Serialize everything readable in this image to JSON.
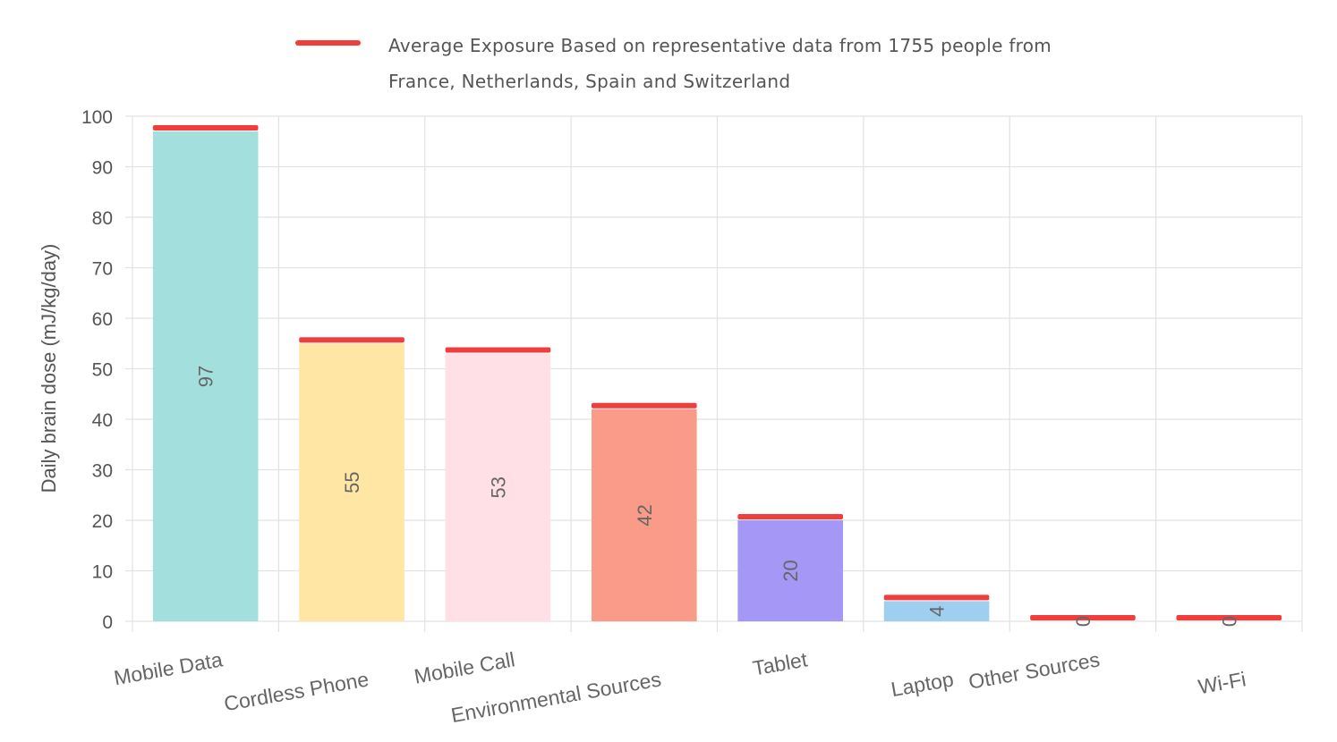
{
  "chart_data": {
    "type": "bar",
    "categories": [
      "Mobile Data",
      "Cordless Phone",
      "Mobile Call",
      "Environmental Sources",
      "Tablet",
      "Laptop",
      "Other Sources",
      "Wi-Fi"
    ],
    "values": [
      97,
      55,
      53,
      42,
      20,
      4,
      0,
      0
    ],
    "bar_colors": [
      "#a3dfdd",
      "#ffe6a4",
      "#ffe0e6",
      "#fa9a88",
      "#a597f5",
      "#9fcfef",
      "#a3dfdd",
      "#a3dfdd"
    ],
    "series": [
      {
        "name": "Average Exposure Based on representative data from 1755 people from France, Netherlands, Spain and Switzerland",
        "values": [
          97,
          55,
          53,
          42,
          20,
          4,
          0,
          0
        ],
        "color": "#f23d3d"
      }
    ],
    "legend_lines": [
      "Average Exposure Based on representative data from 1755 people from",
      "France, Netherlands, Spain and Switzerland"
    ],
    "legend_position": "top",
    "title": "",
    "xlabel": "",
    "ylabel": "Daily brain dose (mJ/kg/day)",
    "ylim": [
      0,
      100
    ],
    "yticks": [
      0,
      10,
      20,
      30,
      40,
      50,
      60,
      70,
      80,
      90,
      100
    ],
    "data_labels": [
      "97",
      "55",
      "53",
      "42",
      "20",
      "4",
      "0",
      "0"
    ],
    "grid": true
  }
}
